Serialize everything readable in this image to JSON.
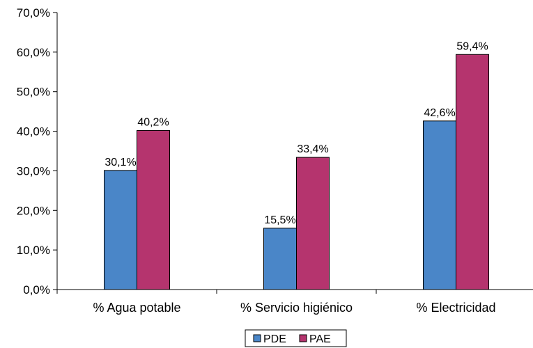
{
  "chart_data": {
    "type": "bar",
    "categories": [
      "% Agua potable",
      "% Servicio higiénico",
      "% Electricidad"
    ],
    "series": [
      {
        "name": "PDE",
        "values": [
          30.1,
          15.5,
          42.6
        ],
        "labels": [
          "30,1%",
          "15,5%",
          "42,6%"
        ],
        "color": "#4a86c8"
      },
      {
        "name": "PAE",
        "values": [
          40.2,
          33.4,
          59.4
        ],
        "labels": [
          "40,2%",
          "33,4%",
          "59,4%"
        ],
        "color": "#b5346e"
      }
    ],
    "y_ticks": [
      "0,0%",
      "10,0%",
      "20,0%",
      "30,0%",
      "40,0%",
      "50,0%",
      "60,0%",
      "70,0%"
    ],
    "ylim": [
      0,
      70
    ],
    "grid": false,
    "legend_position": "bottom-center",
    "title": "",
    "xlabel": "",
    "ylabel": ""
  }
}
